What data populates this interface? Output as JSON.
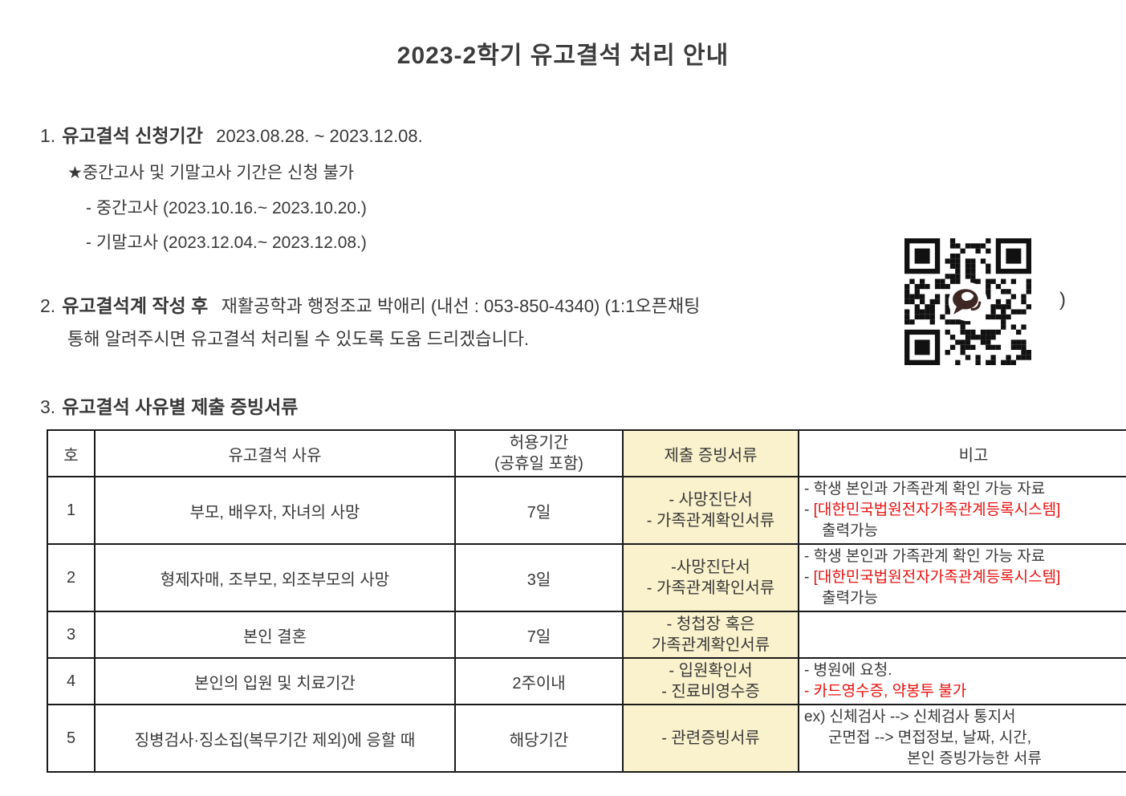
{
  "page": {
    "title": "2023-2학기 유고결석 처리 안내"
  },
  "section1": {
    "num": "1.",
    "heading_bold": "유고결석 신청기간",
    "heading_rest": "2023.08.28. ~ 2023.12.08.",
    "star_note": "★중간고사 및 기말고사 기간은 신청 불가",
    "midterm": "- 중간고사 (2023.10.16.~ 2023.10.20.)",
    "final_exam": "- 기말고사 (2023.12.04.~ 2023.12.08.)"
  },
  "section2": {
    "num": "2.",
    "heading_bold": "유고결석계 작성 후",
    "line1_rest": "재활공학과 행정조교 박애리 (내선 : 053-850-4340) (1:1오픈채팅",
    "qr_label": "kakao-openchat-qr-code",
    "close_paren": ")",
    "line2": "통해 알려주시면 유고결석 처리될 수 있도록 도움 드리겠습니다."
  },
  "section3": {
    "num": "3.",
    "heading_bold": "유고결석 사유별 제출 증빙서류"
  },
  "table": {
    "headers": {
      "no": "호",
      "reason": "유고결석 사유",
      "period_line1": "허용기간",
      "period_line2": "(공휴일 포함)",
      "documents": "제출 증빙서류",
      "note": "비고"
    },
    "rows": [
      {
        "no": "1",
        "reason": "부모, 배우자, 자녀의 사망",
        "period": "7일",
        "doc_line1": "- 사망진단서",
        "doc_line2": "- 가족관계확인서류",
        "note_line1": "- 학생 본인과 가족관계 확인 가능 자료",
        "note_line2_dash": "- ",
        "note_line2_red": "[대한민국법원전자가족관계등록시스템]",
        "note_line3": "출력가능"
      },
      {
        "no": "2",
        "reason": "형제자매, 조부모, 외조부모의 사망",
        "period": "3일",
        "doc_line1": "-사망진단서",
        "doc_line2": "- 가족관계확인서류",
        "note_line1": "- 학생 본인과 가족관계 확인 가능 자료",
        "note_line2_dash": "- ",
        "note_line2_red": "[대한민국법원전자가족관계등록시스템]",
        "note_line3": "출력가능"
      },
      {
        "no": "3",
        "reason": "본인 결혼",
        "period": "7일",
        "doc_line1": "- 청첩장 혹은",
        "doc_line2": "가족관계확인서류",
        "note_line1": ""
      },
      {
        "no": "4",
        "reason": "본인의 입원 및 치료기간",
        "period": "2주이내",
        "doc_line1": "- 입원확인서",
        "doc_line2": "- 진료비영수증",
        "note_line1": "- 병원에 요청.",
        "note_line2_red": "- 카드영수증, 약봉투 불가"
      },
      {
        "no": "5",
        "reason": "징병검사·징소집(복무기간 제외)에 응할 때",
        "period": "해당기간",
        "doc_line1": "- 관련증빙서류",
        "note_line1": "ex) 신체검사 --> 신체검사 통지서",
        "note_line2": "군면접 --> 면접정보, 날짜, 시간,",
        "note_line3": "본인 증빙가능한 서류"
      }
    ]
  },
  "colors": {
    "text": "#383838",
    "accent_red": "#e8110e",
    "table_highlight_yellow": "#faf2cc",
    "border": "#1a1a1a",
    "qr_center_brown": "#3e2723"
  }
}
